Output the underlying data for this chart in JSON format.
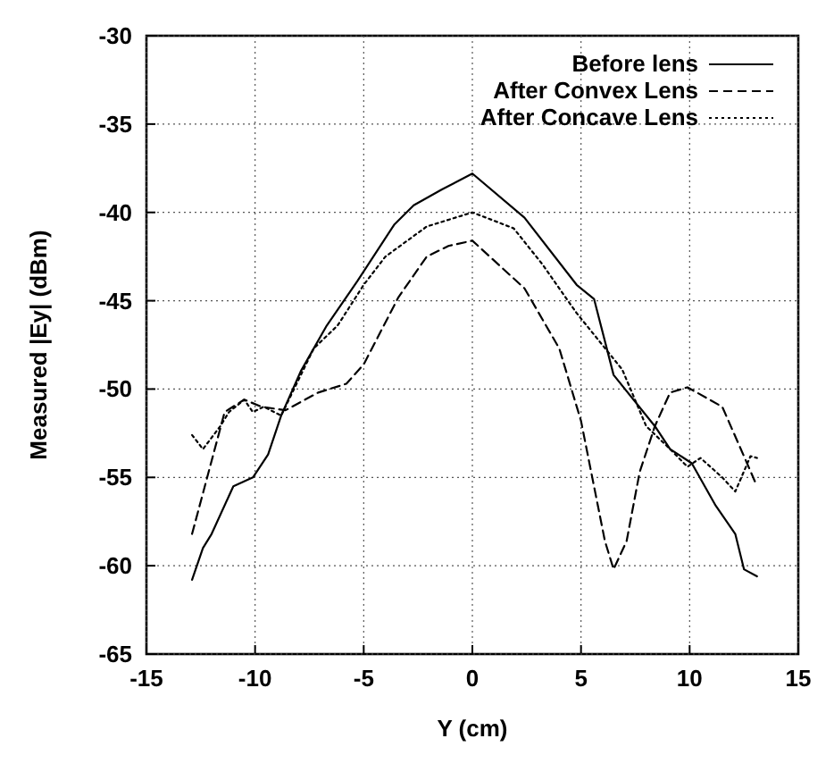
{
  "chart_data": {
    "type": "line",
    "xlabel": "Y (cm)",
    "ylabel": "Measured |Ey| (dBm)",
    "xlim": [
      -15,
      15
    ],
    "xticks": [
      -15,
      -10,
      -5,
      0,
      5,
      10,
      15
    ],
    "ylim": [
      -65,
      -30
    ],
    "yticks": [
      -65,
      -60,
      -55,
      -50,
      -45,
      -40,
      -35,
      -30
    ],
    "grid": true,
    "legend": "top right",
    "marker": "none",
    "series": [
      {
        "name": "Before lens",
        "color": "#000000",
        "line_style": "solid",
        "x": [
          -12.9,
          -12.4,
          -12.0,
          -11.0,
          -10.1,
          -9.4,
          -8.8,
          -7.9,
          -6.7,
          -5.3,
          -3.6,
          -2.7,
          -1.4,
          0,
          2.4,
          4.8,
          5.6,
          6.5,
          8.4,
          9.1,
          10.1,
          11.2,
          12.1,
          12.5,
          13.1
        ],
        "values": [
          -60.8,
          -59.0,
          -58.2,
          -55.5,
          -55.0,
          -53.7,
          -51.5,
          -49.0,
          -46.4,
          -43.9,
          -40.7,
          -39.6,
          -38.7,
          -37.8,
          -40.3,
          -44.1,
          -44.9,
          -49.2,
          -52.1,
          -53.4,
          -54.2,
          -56.6,
          -58.2,
          -60.2,
          -60.6
        ]
      },
      {
        "name": "After Convex Lens",
        "color": "#000000",
        "line_style": "dashed",
        "x": [
          -12.9,
          -11.4,
          -10.5,
          -9.7,
          -8.6,
          -7.1,
          -5.8,
          -5.0,
          -3.4,
          -2.1,
          -1.1,
          0,
          2.4,
          4.0,
          5.0,
          6.1,
          6.5,
          7.1,
          7.7,
          8.4,
          9.1,
          9.9,
          11.5,
          12.5,
          13.1
        ],
        "values": [
          -58.2,
          -51.3,
          -50.6,
          -51.0,
          -51.2,
          -50.2,
          -49.7,
          -48.6,
          -44.8,
          -42.5,
          -41.9,
          -41.6,
          -44.3,
          -47.7,
          -51.8,
          -58.6,
          -60.2,
          -58.6,
          -54.7,
          -52.1,
          -50.2,
          -49.9,
          -51.0,
          -53.8,
          -55.5
        ]
      },
      {
        "name": "After Concave Lens",
        "color": "#000000",
        "line_style": "dotted",
        "x": [
          -12.9,
          -12.4,
          -11.6,
          -11.2,
          -10.5,
          -10.1,
          -9.6,
          -8.8,
          -7.3,
          -6.2,
          -5.0,
          -4.0,
          -2.1,
          0,
          1.9,
          3.2,
          4.8,
          6.9,
          8.0,
          9.1,
          9.9,
          10.5,
          11.5,
          12.1,
          12.8,
          13.1
        ],
        "values": [
          -52.6,
          -53.4,
          -52.1,
          -51.3,
          -50.6,
          -51.3,
          -51.0,
          -51.5,
          -47.7,
          -46.4,
          -44.1,
          -42.5,
          -40.8,
          -40.0,
          -40.9,
          -42.9,
          -45.7,
          -48.9,
          -52.1,
          -53.4,
          -54.4,
          -53.9,
          -55.0,
          -55.8,
          -53.8,
          -53.9
        ]
      }
    ]
  }
}
